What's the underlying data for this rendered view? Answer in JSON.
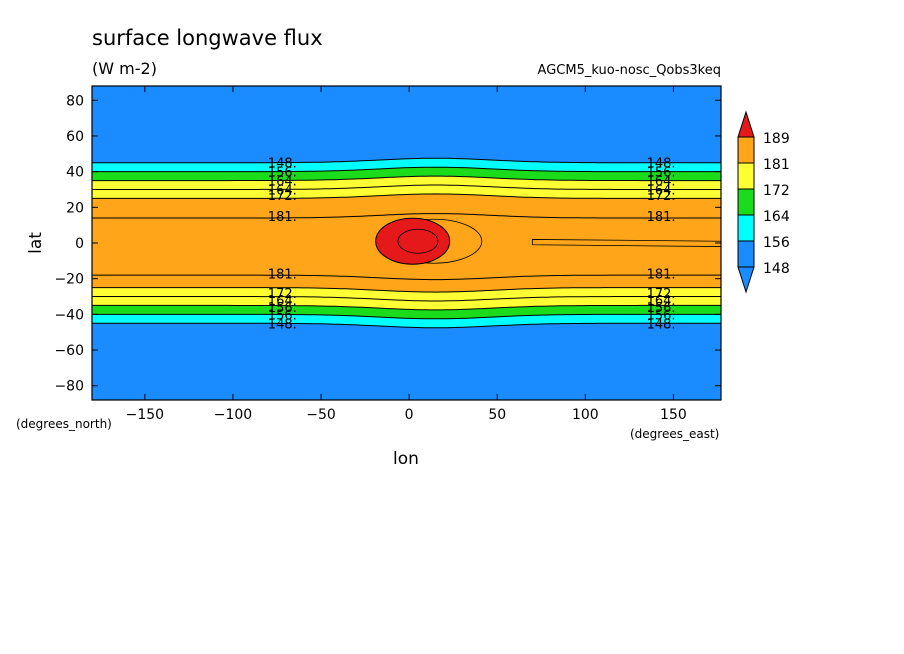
{
  "chart_data": {
    "type": "heatmap",
    "title": "surface longwave flux",
    "units": "(W m-2)",
    "run_label": "AGCM5_kuo-nosc_Qobs3keq",
    "xlabel": "lon",
    "ylabel": "lat",
    "x_unit_label": "(degrees_east)",
    "y_unit_label": "(degrees_north)",
    "xlim": [
      -180,
      177
    ],
    "ylim": [
      -88,
      88
    ],
    "x_ticks": [
      -150,
      -100,
      -50,
      0,
      50,
      100,
      150
    ],
    "y_ticks": [
      -80,
      -60,
      -40,
      -20,
      0,
      20,
      40,
      60,
      80
    ],
    "x_tick_labels": [
      "−150",
      "−100",
      "−50",
      "0",
      "50",
      "100",
      "150"
    ],
    "y_tick_labels": [
      "−80",
      "−60",
      "−40",
      "−20",
      "0",
      "20",
      "40",
      "60",
      "80"
    ],
    "colorbar": {
      "levels": [
        148,
        156,
        164,
        172,
        181,
        189
      ],
      "labels": [
        "148",
        "156",
        "164",
        "172",
        "181",
        "189"
      ],
      "colors": [
        "#1a8cff",
        "#00ffff",
        "#1adc1a",
        "#ffff33",
        "#ffa51a",
        "#e6191a"
      ]
    },
    "contour_labels": [
      "148.",
      "156.",
      "164.",
      "172.",
      "181."
    ],
    "bands_lat": {
      "north_boundaries": [
        45,
        40,
        35,
        30,
        25,
        14
      ],
      "south_boundaries": [
        -45,
        -40,
        -35,
        -30,
        -25,
        -18
      ]
    },
    "max_center": {
      "lon": 2,
      "lat": 1,
      "value": 189
    }
  }
}
